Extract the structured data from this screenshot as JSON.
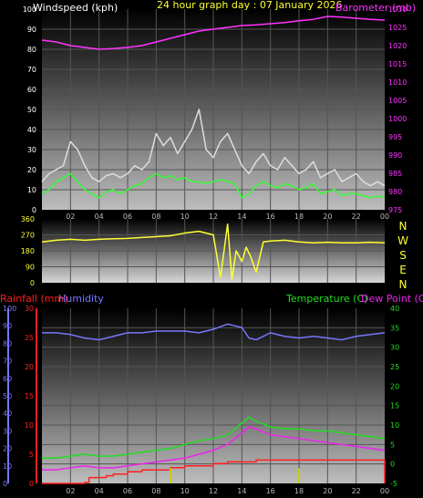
{
  "header": {
    "windspeed_label": "Windspeed (kph)",
    "date_label": "24 hour graph day : 07 January 2026",
    "barometer_label": "Barometer (mb)"
  },
  "lower_header": {
    "rainfall_label": "Rainfall (mm)",
    "humidity_label": "Humidity",
    "temperature_label": "Temperature (C)",
    "dewpoint_label": "Dew Point (C)"
  },
  "colors": {
    "wind": "#ffffff",
    "gust": "#dddddd",
    "wind_avg": "#33ff33",
    "barometer": "#ff33ff",
    "direction": "#ffff33",
    "rain": "#ff2020",
    "humidity": "#7777ff",
    "temperature": "#22dd22",
    "dewpoint": "#ee22ee",
    "rain_rate": "#cccc00"
  },
  "chart_data": [
    {
      "type": "line",
      "name": "wind-barometer",
      "xticks": [
        "02",
        "04",
        "06",
        "08",
        "10",
        "12",
        "14",
        "16",
        "18",
        "20",
        "22",
        "00"
      ],
      "xlim": [
        0,
        24
      ],
      "left_axis": {
        "label": "Windspeed (kph)",
        "ylim": [
          0,
          100
        ],
        "ticks": [
          0,
          10,
          20,
          30,
          40,
          50,
          60,
          70,
          80,
          90,
          100
        ]
      },
      "right_axis": {
        "label": "Barometer (mb)",
        "ylim": [
          975,
          1030
        ],
        "ticks": [
          975,
          980,
          985,
          990,
          995,
          1000,
          1005,
          1010,
          1015,
          1020,
          1025,
          1030
        ]
      },
      "series": [
        {
          "axis": "right",
          "color": "#ff33ff",
          "x": [
            0,
            1,
            2,
            3,
            4,
            5,
            6,
            7,
            8,
            9,
            10,
            11,
            12,
            13,
            14,
            15,
            16,
            17,
            18,
            19,
            20,
            21,
            22,
            23,
            24
          ],
          "y": [
            1021.5,
            1021,
            1020,
            1019.5,
            1019,
            1019.2,
            1019.5,
            1020,
            1021,
            1022,
            1023,
            1024,
            1024.5,
            1025,
            1025.5,
            1025.7,
            1026,
            1026.3,
            1026.8,
            1027.2,
            1028,
            1027.8,
            1027.5,
            1027.2,
            1027
          ]
        },
        {
          "axis": "left",
          "color": "#dddddd",
          "x": [
            0,
            0.5,
            1,
            1.5,
            2,
            2.5,
            3,
            3.5,
            4,
            4.5,
            5,
            5.5,
            6,
            6.5,
            7,
            7.5,
            8,
            8.5,
            9,
            9.5,
            10,
            10.5,
            11,
            11.5,
            12,
            12.5,
            13,
            13.5,
            14,
            14.5,
            15,
            15.5,
            16,
            16.5,
            17,
            17.5,
            18,
            18.5,
            19,
            19.5,
            20,
            20.5,
            21,
            21.5,
            22,
            22.5,
            23,
            23.5,
            24
          ],
          "y": [
            14,
            18,
            20,
            22,
            34,
            30,
            22,
            16,
            14,
            17,
            18,
            16,
            18,
            22,
            20,
            24,
            38,
            32,
            36,
            28,
            34,
            40,
            50,
            30,
            26,
            34,
            38,
            30,
            22,
            18,
            24,
            28,
            22,
            20,
            26,
            22,
            18,
            20,
            24,
            16,
            18,
            20,
            14,
            16,
            18,
            14,
            12,
            14,
            12
          ]
        },
        {
          "axis": "left",
          "color": "#33ff33",
          "x": [
            0,
            0.5,
            1,
            1.5,
            2,
            2.5,
            3,
            3.5,
            4,
            4.5,
            5,
            5.5,
            6,
            6.5,
            7,
            7.5,
            8,
            8.5,
            9,
            9.5,
            10,
            10.5,
            11,
            11.5,
            12,
            12.5,
            13,
            13.5,
            14,
            14.5,
            15,
            15.5,
            16,
            16.5,
            17,
            17.5,
            18,
            18.5,
            19,
            19.5,
            20,
            20.5,
            21,
            21.5,
            22,
            22.5,
            23,
            23.5,
            24
          ],
          "y": [
            8,
            10,
            14,
            16,
            18,
            14,
            10,
            8,
            6,
            9,
            10,
            8,
            10,
            12,
            13,
            16,
            18,
            16,
            17,
            15,
            16,
            14,
            14,
            13,
            14,
            15,
            14,
            13,
            6,
            8,
            12,
            14,
            12,
            11,
            13,
            12,
            10,
            11,
            13,
            8,
            9,
            10,
            7,
            8,
            8,
            7,
            6,
            7,
            6
          ]
        }
      ]
    },
    {
      "type": "line",
      "name": "wind-direction",
      "xlim": [
        0,
        24
      ],
      "left_axis": {
        "ylim": [
          0,
          360
        ],
        "ticks": [
          0,
          90,
          180,
          270,
          360
        ]
      },
      "right_axis": {
        "ticks": [
          "N",
          "W",
          "S",
          "E",
          "N"
        ]
      },
      "series": [
        {
          "color": "#ffff33",
          "x": [
            0,
            1,
            2,
            3,
            4,
            5,
            6,
            7,
            8,
            9,
            10,
            11,
            12,
            12.5,
            13,
            13.3,
            13.6,
            14,
            14.3,
            14.6,
            15,
            15.5,
            16,
            17,
            18,
            19,
            20,
            21,
            22,
            23,
            24
          ],
          "y": [
            230,
            240,
            245,
            240,
            245,
            248,
            250,
            255,
            260,
            265,
            280,
            290,
            270,
            30,
            330,
            20,
            180,
            120,
            200,
            150,
            60,
            230,
            235,
            240,
            230,
            225,
            228,
            225,
            225,
            228,
            225
          ]
        }
      ]
    },
    {
      "type": "line",
      "name": "rain-humidity-temperature",
      "xticks": [
        "02",
        "04",
        "06",
        "08",
        "10",
        "12",
        "14",
        "16",
        "18",
        "20",
        "22",
        "00"
      ],
      "xlim": [
        0,
        24
      ],
      "humidity_axis": {
        "ylim": [
          0,
          100
        ],
        "ticks": [
          0,
          10,
          20,
          30,
          40,
          50,
          60,
          70,
          80,
          90,
          100
        ]
      },
      "rain_axis": {
        "ylim": [
          0,
          30
        ],
        "ticks": [
          0,
          5,
          10,
          15,
          20,
          25,
          30
        ]
      },
      "temperature_axis": {
        "ylim": [
          -5,
          40
        ],
        "ticks": [
          -5,
          0,
          5,
          10,
          15,
          20,
          25,
          30,
          35,
          40
        ]
      },
      "series": [
        {
          "axis": "humidity",
          "color": "#7777ff",
          "x": [
            0,
            1,
            2,
            3,
            4,
            5,
            6,
            7,
            8,
            9,
            10,
            11,
            12,
            13,
            14,
            14.5,
            15,
            16,
            17,
            18,
            19,
            20,
            21,
            22,
            23,
            24
          ],
          "y": [
            86,
            86,
            85,
            83,
            82,
            84,
            86,
            86,
            87,
            87,
            87,
            86,
            88,
            91,
            89,
            83,
            82,
            86,
            84,
            83,
            84,
            83,
            82,
            84,
            85,
            86
          ]
        },
        {
          "axis": "temperature",
          "color": "#22dd22",
          "x": [
            0,
            1,
            2,
            3,
            4,
            5,
            6,
            7,
            8,
            9,
            10,
            11,
            12,
            13,
            14,
            14.5,
            15,
            16,
            17,
            18,
            19,
            20,
            21,
            22,
            23,
            24
          ],
          "y": [
            1.5,
            1.5,
            2,
            2.5,
            2,
            2,
            2.5,
            3,
            3.5,
            4,
            5,
            6,
            6.5,
            7.5,
            10.5,
            12,
            11,
            9.5,
            9,
            9,
            8.5,
            8.5,
            8,
            7.5,
            7,
            6.5
          ]
        },
        {
          "axis": "temperature",
          "color": "#ee22ee",
          "x": [
            0,
            1,
            2,
            3,
            4,
            5,
            6,
            7,
            8,
            9,
            10,
            11,
            12,
            13,
            14,
            14.5,
            15,
            16,
            17,
            18,
            19,
            20,
            21,
            22,
            23,
            24
          ],
          "y": [
            -1.5,
            -1.5,
            -1,
            -0.5,
            -1,
            -1,
            -0.5,
            0,
            0.5,
            1,
            1.5,
            2.5,
            3.5,
            5,
            8,
            9.5,
            9,
            7.5,
            7,
            6.5,
            6,
            5.5,
            5,
            4.5,
            4,
            3.5
          ]
        },
        {
          "axis": "rain",
          "color": "#ff2020",
          "step": true,
          "x": [
            0,
            2,
            3,
            3.3,
            4.5,
            5,
            6,
            7,
            9,
            10,
            12,
            13,
            15,
            18,
            20,
            23.5,
            24
          ],
          "y": [
            0,
            0,
            0.2,
            1,
            1.3,
            1.6,
            2,
            2.3,
            2.7,
            3,
            3.4,
            3.7,
            4,
            4,
            4,
            4,
            0
          ]
        },
        {
          "axis": "rain",
          "color": "#cccc00",
          "type": "bar",
          "x": [
            9,
            18
          ],
          "y": [
            2.6,
            2.6
          ]
        }
      ]
    }
  ]
}
